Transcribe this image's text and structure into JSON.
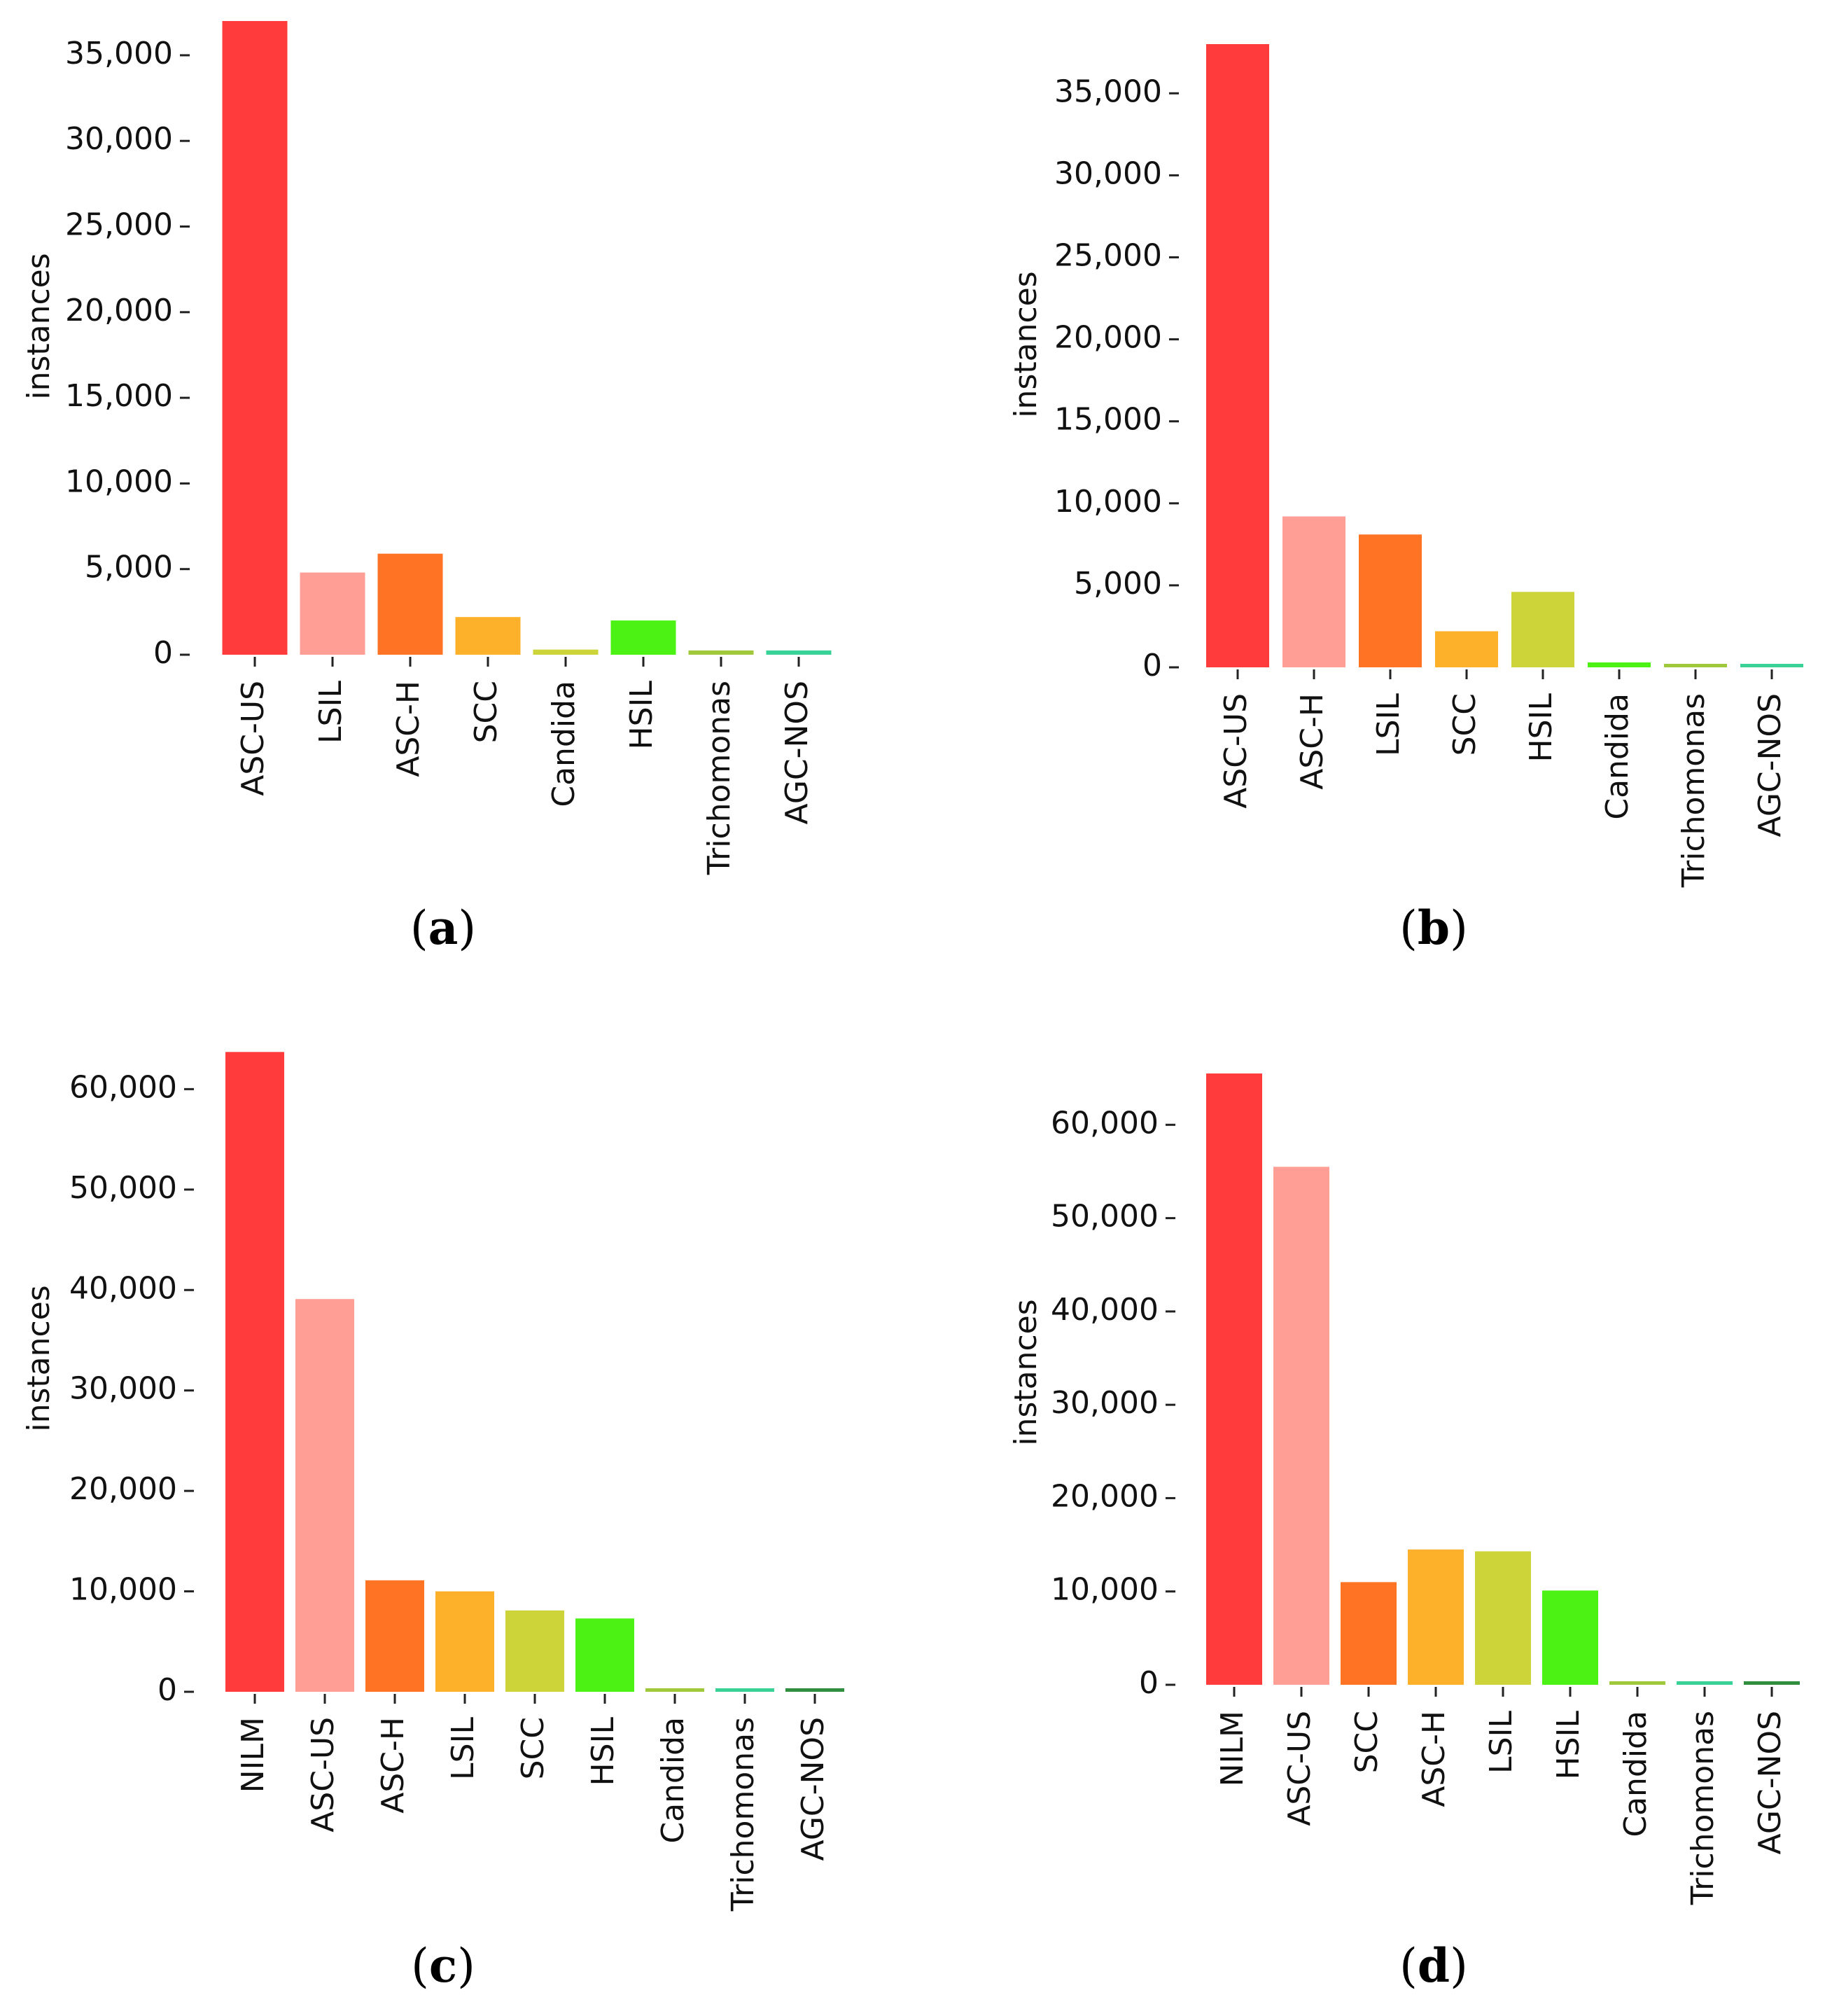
{
  "chart_data": [
    {
      "type": "bar",
      "panel": "a",
      "caption_open": "(",
      "caption_letter": "a",
      "caption_close": ")",
      "ylabel": "instances",
      "xlabel": "",
      "ylim": [
        0,
        37000
      ],
      "yticks": [
        0,
        5000,
        10000,
        15000,
        20000,
        25000,
        30000,
        35000
      ],
      "ytick_labels": [
        "0",
        "5,000",
        "10,000",
        "15,000",
        "20,000",
        "25,000",
        "30,000",
        "35,000"
      ],
      "grid": false,
      "categories": [
        "ASC-US",
        "LSIL",
        "ASC-H",
        "SCC",
        "Candida",
        "HSIL",
        "Trichomonas",
        "AGC-NOS"
      ],
      "values": [
        37000,
        4800,
        5900,
        2200,
        300,
        2000,
        250,
        250
      ],
      "colors": [
        "#ff3b3b",
        "#ff9e94",
        "#ff7324",
        "#fdb12a",
        "#cdd43a",
        "#4cf214",
        "#9fc83a",
        "#38d196"
      ]
    },
    {
      "type": "bar",
      "panel": "b",
      "caption_open": "(",
      "caption_letter": "b",
      "caption_close": ")",
      "ylabel": "instances",
      "xlabel": "",
      "ylim": [
        0,
        38000
      ],
      "yticks": [
        0,
        5000,
        10000,
        15000,
        20000,
        25000,
        30000,
        35000
      ],
      "ytick_labels": [
        "0",
        "5,000",
        "10,000",
        "15,000",
        "20,000",
        "25,000",
        "30,000",
        "35,000"
      ],
      "grid": false,
      "categories": [
        "ASC-US",
        "ASC-H",
        "LSIL",
        "SCC",
        "HSIL",
        "Candida",
        "Trichomonas",
        "AGC-NOS"
      ],
      "values": [
        38000,
        9200,
        8100,
        2200,
        4600,
        300,
        200,
        200
      ],
      "colors": [
        "#ff3b3b",
        "#ff9e94",
        "#ff7324",
        "#fdb12a",
        "#cdd43a",
        "#4cf214",
        "#9fc83a",
        "#38d196"
      ]
    },
    {
      "type": "bar",
      "panel": "c",
      "caption_open": "(",
      "caption_letter": "c",
      "caption_close": ")",
      "ylabel": "instances",
      "xlabel": "",
      "ylim": [
        0,
        64000
      ],
      "yticks": [
        0,
        10000,
        20000,
        30000,
        40000,
        50000,
        60000
      ],
      "ytick_labels": [
        "0",
        "10,000",
        "20,000",
        "30,000",
        "40,000",
        "50,000",
        "60,000"
      ],
      "grid": false,
      "categories": [
        "NILM",
        "ASC-US",
        "ASC-H",
        "LSIL",
        "SCC",
        "HSIL",
        "Candida",
        "Trichomonas",
        "AGC-NOS"
      ],
      "values": [
        63700,
        39100,
        11100,
        10000,
        8100,
        7300,
        350,
        150,
        200
      ],
      "colors": [
        "#ff3b3b",
        "#ff9e94",
        "#ff7324",
        "#fdb12a",
        "#cdd43a",
        "#4cf214",
        "#9fc83a",
        "#38d196",
        "#2f8f3e"
      ]
    },
    {
      "type": "bar",
      "panel": "d",
      "caption_open": "(",
      "caption_letter": "d",
      "caption_close": ")",
      "ylabel": "instances",
      "xlabel": "",
      "ylim": [
        0,
        65500
      ],
      "yticks": [
        0,
        10000,
        20000,
        30000,
        40000,
        50000,
        60000
      ],
      "ytick_labels": [
        "0",
        "10,000",
        "20,000",
        "30,000",
        "40,000",
        "50,000",
        "60,000"
      ],
      "grid": false,
      "categories": [
        "NILM",
        "ASC-US",
        "SCC",
        "ASC-H",
        "LSIL",
        "HSIL",
        "Candida",
        "Trichomonas",
        "AGC-NOS"
      ],
      "values": [
        65500,
        55500,
        11000,
        14500,
        14300,
        10100,
        300,
        150,
        250
      ],
      "colors": [
        "#ff3b3b",
        "#ff9e94",
        "#ff7324",
        "#fdb12a",
        "#cdd43a",
        "#4cf214",
        "#9fc83a",
        "#38d196",
        "#2f8f3e"
      ]
    }
  ]
}
